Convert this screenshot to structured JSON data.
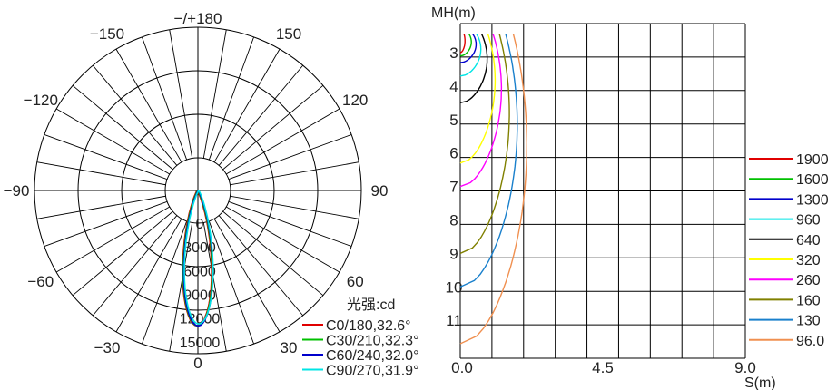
{
  "chart_data": [
    {
      "type": "polar",
      "angle_labels": [
        {
          "deg": 180,
          "text": "−/+180"
        },
        {
          "deg": 150,
          "text": "150"
        },
        {
          "deg": -150,
          "text": "−150"
        },
        {
          "deg": 120,
          "text": "120"
        },
        {
          "deg": -120,
          "text": "−120"
        },
        {
          "deg": 90,
          "text": "90"
        },
        {
          "deg": -90,
          "text": "−90"
        },
        {
          "deg": 60,
          "text": "60"
        },
        {
          "deg": -60,
          "text": "−60"
        },
        {
          "deg": 30,
          "text": "30"
        },
        {
          "deg": -30,
          "text": "−30"
        },
        {
          "deg": 0,
          "text": "0"
        }
      ],
      "radial_ticks": [
        0,
        3000,
        6000,
        9000,
        12000,
        15000
      ],
      "radial_labels": [
        "0",
        "3000",
        "6000",
        "9000",
        "12000",
        "15000"
      ],
      "rmax": 16500,
      "unit_label": "光强:cd",
      "series": [
        {
          "name": "C0/180,32.6°",
          "color": "#e00000",
          "peak": 14000,
          "halfwidth_deg": 12
        },
        {
          "name": "C30/210,32.3°",
          "color": "#00c000",
          "peak": 14000,
          "halfwidth_deg": 12
        },
        {
          "name": "C60/240,32.0°",
          "color": "#0000cc",
          "peak": 14000,
          "halfwidth_deg": 12
        },
        {
          "name": "C90/270,31.9°",
          "color": "#00e5e5",
          "peak": 13800,
          "halfwidth_deg": 12
        }
      ]
    },
    {
      "type": "line",
      "ylabel": "MH(m)",
      "xlabel": "S(m)",
      "xlim": [
        0,
        9
      ],
      "ylim": [
        2.5,
        12
      ],
      "x_tick_labels": [
        "0.0",
        "4.5",
        "9.0"
      ],
      "y_tick_labels": [
        "3",
        "4",
        "5",
        "6",
        "7",
        "8",
        "9",
        "10",
        "11"
      ],
      "series": [
        {
          "name": "1900",
          "color": "#e00000",
          "tip_mh": 3.0,
          "max_s": 0.15
        },
        {
          "name": "1600",
          "color": "#00c000",
          "tip_mh": 3.1,
          "max_s": 0.35
        },
        {
          "name": "1300",
          "color": "#0000cc",
          "tip_mh": 3.3,
          "max_s": 0.5
        },
        {
          "name": "960",
          "color": "#00e5e5",
          "tip_mh": 3.7,
          "max_s": 0.65
        },
        {
          "name": "640",
          "color": "#000000",
          "tip_mh": 4.5,
          "max_s": 0.85
        },
        {
          "name": "320",
          "color": "#ffff00",
          "tip_mh": 6.3,
          "max_s": 1.1
        },
        {
          "name": "260",
          "color": "#ff00ff",
          "tip_mh": 7.0,
          "max_s": 1.3
        },
        {
          "name": "160",
          "color": "#808000",
          "tip_mh": 9.0,
          "max_s": 1.55
        },
        {
          "name": "130",
          "color": "#1a80cc",
          "tip_mh": 10.0,
          "max_s": 1.8
        },
        {
          "name": "96.0",
          "color": "#f09050",
          "tip_mh": 11.7,
          "max_s": 2.1
        }
      ]
    }
  ]
}
